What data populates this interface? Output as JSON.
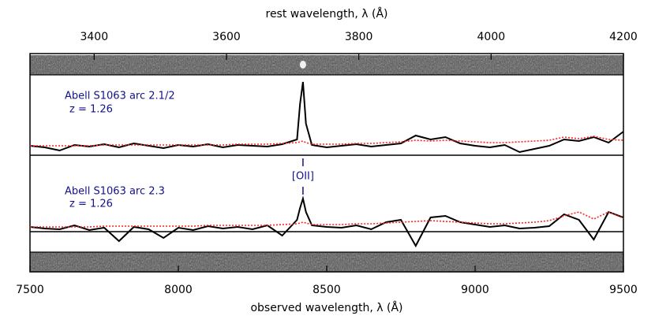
{
  "chart_data": {
    "type": "line",
    "x_label": "observed wavelength, λ (Å)",
    "x2_label": "rest wavelength, λ (Å)",
    "xlim": [
      7500,
      9500
    ],
    "xticks": [
      7500,
      8000,
      8500,
      9000,
      9500
    ],
    "x2lim": [
      3303,
      4200
    ],
    "x2ticks": [
      3400,
      3600,
      3800,
      4000,
      4200
    ],
    "x": [
      7500,
      7550,
      7600,
      7650,
      7700,
      7750,
      7800,
      7850,
      7900,
      7950,
      8000,
      8050,
      8100,
      8150,
      8200,
      8250,
      8300,
      8350,
      8400,
      8410,
      8420,
      8430,
      8450,
      8500,
      8550,
      8600,
      8650,
      8700,
      8750,
      8800,
      8850,
      8900,
      8950,
      9000,
      9050,
      9100,
      9150,
      9200,
      9250,
      9300,
      9350,
      9400,
      9450,
      9500
    ],
    "annotation": {
      "text": "[OII]",
      "x": 8420
    },
    "panels": [
      {
        "label": "Abell S1063 arc 2.1/2",
        "redshift": "z = 1.26",
        "ylim": [
          -1,
          10
        ],
        "series": [
          {
            "color": "#000000",
            "style": "solid",
            "values": [
              1.2,
              1.0,
              0.6,
              1.3,
              1.1,
              1.4,
              1.0,
              1.5,
              1.2,
              0.9,
              1.3,
              1.1,
              1.4,
              1.0,
              1.3,
              1.2,
              1.1,
              1.4,
              2.0,
              6.5,
              9.3,
              4.0,
              1.3,
              1.0,
              1.2,
              1.4,
              1.1,
              1.3,
              1.5,
              2.5,
              2.0,
              2.3,
              1.5,
              1.2,
              1.0,
              1.3,
              0.4,
              0.8,
              1.2,
              2.0,
              1.8,
              2.3,
              1.6,
              3.0
            ]
          },
          {
            "color": "#ff2020",
            "style": "dotted",
            "values": [
              1.2,
              1.2,
              1.2,
              1.2,
              1.2,
              1.3,
              1.3,
              1.3,
              1.3,
              1.3,
              1.3,
              1.3,
              1.3,
              1.3,
              1.4,
              1.4,
              1.4,
              1.5,
              1.6,
              1.7,
              1.8,
              1.6,
              1.4,
              1.4,
              1.4,
              1.5,
              1.5,
              1.6,
              1.7,
              1.9,
              1.8,
              1.9,
              1.8,
              1.7,
              1.6,
              1.6,
              1.7,
              1.8,
              1.9,
              2.3,
              2.1,
              2.4,
              2.0,
              1.9
            ]
          }
        ]
      },
      {
        "label": "Abell S1063 arc 2.3",
        "redshift": "z = 1.26",
        "ylim": [
          -3,
          10
        ],
        "series": [
          {
            "color": "#000000",
            "style": "solid",
            "values": [
              0.6,
              0.4,
              0.3,
              0.8,
              0.2,
              0.5,
              -1.2,
              0.6,
              0.3,
              -0.8,
              0.5,
              0.2,
              0.7,
              0.4,
              0.6,
              0.3,
              0.8,
              -0.5,
              1.5,
              3.0,
              4.2,
              2.5,
              0.8,
              0.6,
              0.5,
              0.8,
              0.3,
              1.2,
              1.5,
              -1.8,
              1.8,
              2.0,
              1.2,
              0.9,
              0.6,
              0.8,
              0.4,
              0.5,
              0.7,
              2.2,
              1.5,
              -1.0,
              2.5,
              1.8
            ]
          },
          {
            "color": "#ff2020",
            "style": "dotted",
            "values": [
              0.6,
              0.6,
              0.6,
              0.6,
              0.6,
              0.7,
              0.7,
              0.7,
              0.7,
              0.7,
              0.7,
              0.7,
              0.8,
              0.8,
              0.8,
              0.8,
              0.8,
              0.9,
              1.0,
              1.1,
              1.2,
              1.1,
              0.9,
              0.9,
              0.9,
              1.0,
              1.0,
              1.1,
              1.2,
              1.3,
              1.4,
              1.3,
              1.2,
              1.1,
              1.0,
              1.0,
              1.1,
              1.2,
              1.4,
              2.0,
              2.5,
              1.6,
              2.5,
              1.7
            ]
          }
        ]
      }
    ]
  }
}
